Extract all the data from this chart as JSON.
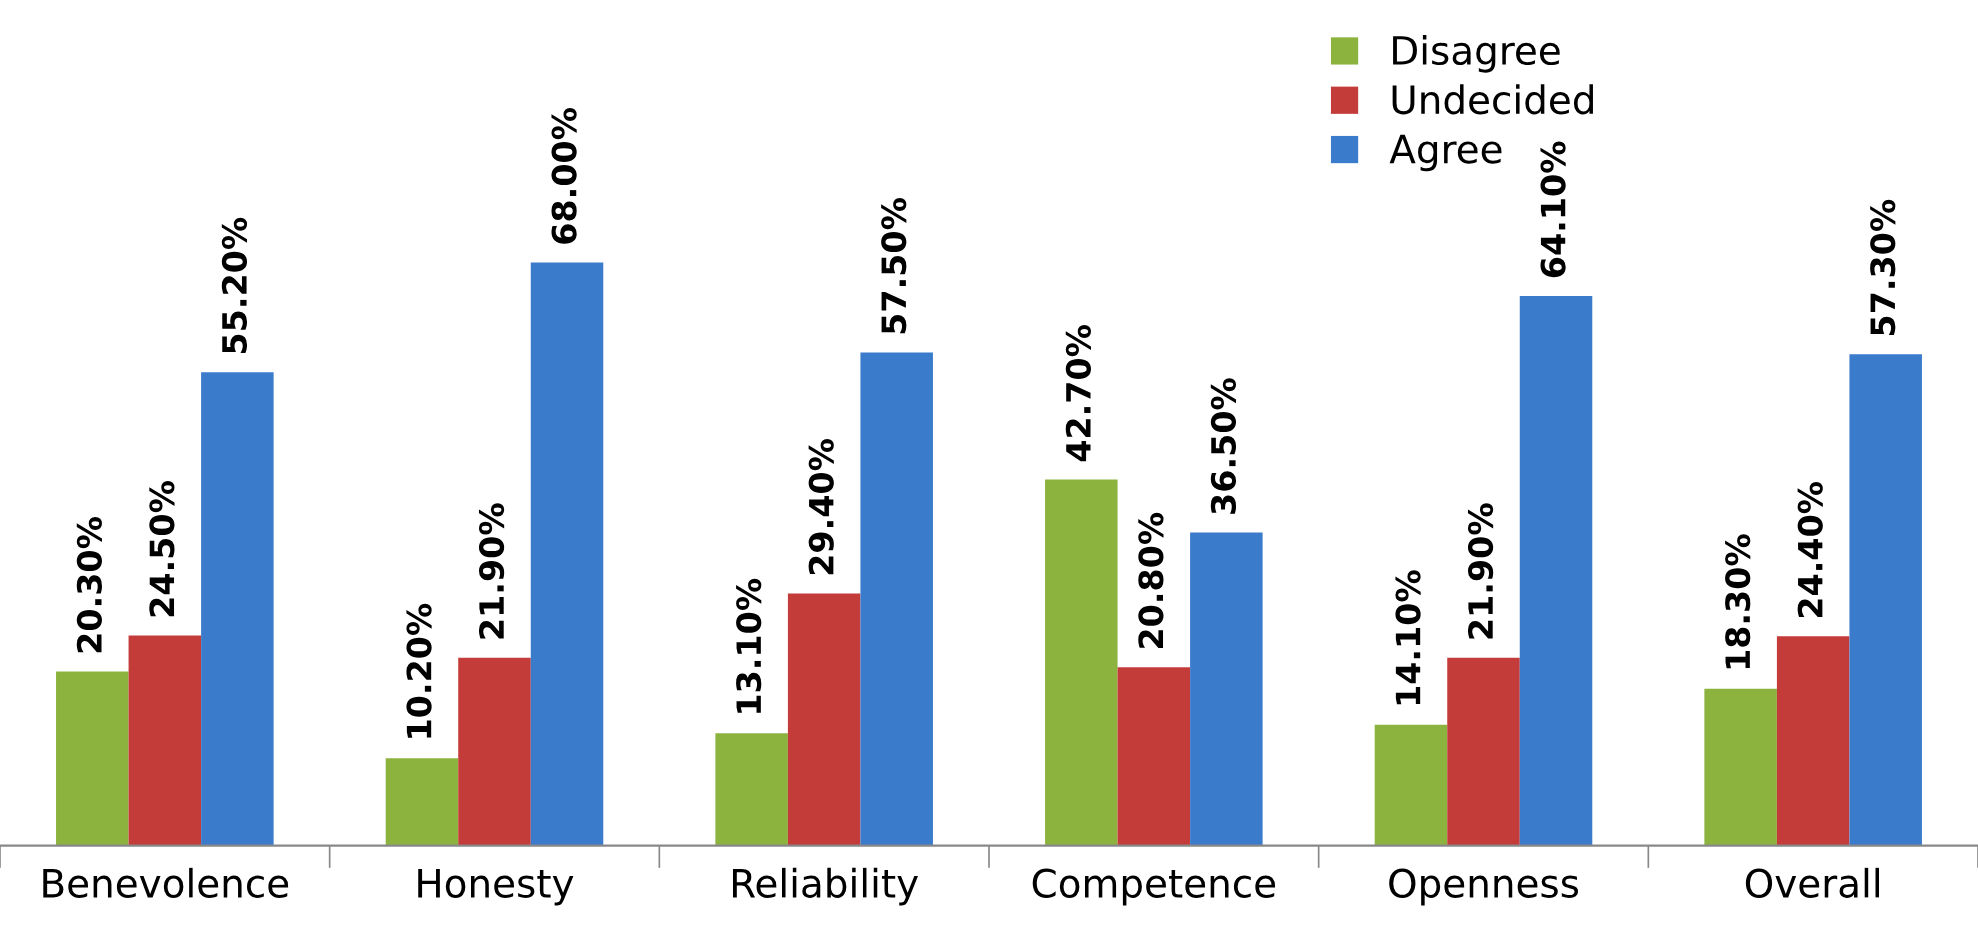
{
  "chart_data": {
    "type": "bar",
    "categories": [
      "Benevolence",
      "Honesty",
      "Reliability",
      "Competence",
      "Openness",
      "Overall"
    ],
    "series": [
      {
        "name": "Disagree",
        "color": "#8cb33e",
        "values": [
          20.3,
          10.2,
          13.1,
          42.7,
          14.1,
          18.3
        ],
        "value_labels": [
          "20.30%",
          "10.20%",
          "13.10%",
          "42.70%",
          "14.10%",
          "18.30%"
        ]
      },
      {
        "name": "Undecided",
        "color": "#c43c39",
        "values": [
          24.5,
          21.9,
          29.4,
          20.8,
          21.9,
          24.4
        ],
        "value_labels": [
          "24.50%",
          "21.90%",
          "29.40%",
          "20.80%",
          "21.90%",
          "24.40%"
        ]
      },
      {
        "name": "Agree",
        "color": "#3b7bcc",
        "values": [
          55.2,
          68.0,
          57.5,
          36.5,
          64.1,
          57.3
        ],
        "value_labels": [
          "55.20%",
          "68.00%",
          "57.50%",
          "36.50%",
          "64.10%",
          "57.30%"
        ]
      }
    ],
    "data_labels": true,
    "legend": "top",
    "grid": false
  }
}
